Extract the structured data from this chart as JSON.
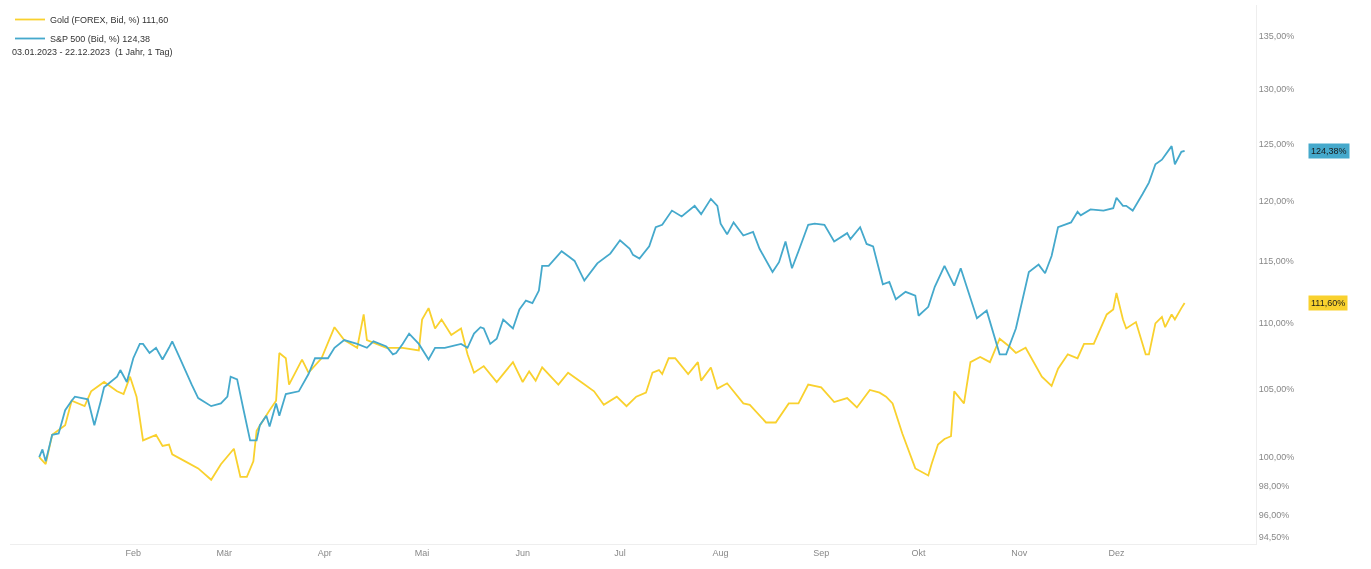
{
  "chart_data": {
    "type": "line",
    "log": "y",
    "grid": false,
    "legend": "top left",
    "marker": "none",
    "line_style": "solid",
    "xlim": [
      "2022-12-25",
      "2024-01-13"
    ],
    "xticks": [
      {
        "value": "2023-02-01",
        "label": "Feb"
      },
      {
        "value": "2023-03-01",
        "label": "Mär"
      },
      {
        "value": "2023-04-01",
        "label": "Apr"
      },
      {
        "value": "2023-05-01",
        "label": "Mai"
      },
      {
        "value": "2023-06-01",
        "label": "Jun"
      },
      {
        "value": "2023-07-01",
        "label": "Jul"
      },
      {
        "value": "2023-08-01",
        "label": "Aug"
      },
      {
        "value": "2023-09-01",
        "label": "Sep"
      },
      {
        "value": "2023-10-01",
        "label": "Okt"
      },
      {
        "value": "2023-11-01",
        "label": "Nov"
      },
      {
        "value": "2023-12-01",
        "label": "Dez"
      }
    ],
    "ylim": [
      94,
      138
    ],
    "yticks": [
      {
        "value": 94.5,
        "label": "94,50%"
      },
      {
        "value": 96,
        "label": "96,00%"
      },
      {
        "value": 98,
        "label": "98,00%"
      },
      {
        "value": 100,
        "label": "100,00%"
      },
      {
        "value": 105,
        "label": "105,00%"
      },
      {
        "value": 110,
        "label": "110,00%"
      },
      {
        "value": 115,
        "label": "115,00%"
      },
      {
        "value": 120,
        "label": "120,00%"
      },
      {
        "value": 125,
        "label": "125,00%"
      },
      {
        "value": 130,
        "label": "130,00%"
      },
      {
        "value": 135,
        "label": "135,00%"
      }
    ],
    "annotations": [
      "03.01.2023 - 22.12.2023  (1 Jahr, 1 Tag)",
      "111,60%",
      "124,38%"
    ],
    "series": [
      {
        "name": "Gold (FOREX, Bid, %) 111,60",
        "color": "#f9d12e",
        "x": [
          "2023-01-03",
          "2023-01-05",
          "2023-01-07",
          "2023-01-11",
          "2023-01-13",
          "2023-01-17",
          "2023-01-19",
          "2023-01-23",
          "2023-01-27",
          "2023-01-29",
          "2023-01-31",
          "2023-02-02",
          "2023-02-04",
          "2023-02-08",
          "2023-02-10",
          "2023-02-12",
          "2023-02-13",
          "2023-02-17",
          "2023-02-21",
          "2023-02-25",
          "2023-02-28",
          "2023-03-04",
          "2023-03-06",
          "2023-03-08",
          "2023-03-10",
          "2023-03-11",
          "2023-03-15",
          "2023-03-17",
          "2023-03-18",
          "2023-03-20",
          "2023-03-21",
          "2023-03-25",
          "2023-03-27",
          "2023-03-31",
          "2023-04-04",
          "2023-04-07",
          "2023-04-11",
          "2023-04-13",
          "2023-04-14",
          "2023-04-20",
          "2023-04-25",
          "2023-04-30",
          "2023-05-01",
          "2023-05-03",
          "2023-05-05",
          "2023-05-07",
          "2023-05-10",
          "2023-05-13",
          "2023-05-15",
          "2023-05-17",
          "2023-05-20",
          "2023-05-24",
          "2023-05-29",
          "2023-06-01",
          "2023-06-03",
          "2023-06-05",
          "2023-06-07",
          "2023-06-12",
          "2023-06-15",
          "2023-06-19",
          "2023-06-23",
          "2023-06-26",
          "2023-06-30",
          "2023-07-03",
          "2023-07-06",
          "2023-07-09",
          "2023-07-11",
          "2023-07-13",
          "2023-07-14",
          "2023-07-16",
          "2023-07-18",
          "2023-07-22",
          "2023-07-25",
          "2023-07-26",
          "2023-07-29",
          "2023-07-31",
          "2023-08-03",
          "2023-08-08",
          "2023-08-10",
          "2023-08-15",
          "2023-08-18",
          "2023-08-22",
          "2023-08-25",
          "2023-08-28",
          "2023-09-01",
          "2023-09-05",
          "2023-09-09",
          "2023-09-12",
          "2023-09-16",
          "2023-09-19",
          "2023-09-21",
          "2023-09-23",
          "2023-09-26",
          "2023-09-30",
          "2023-10-04",
          "2023-10-05",
          "2023-10-07",
          "2023-10-09",
          "2023-10-11",
          "2023-10-12",
          "2023-10-15",
          "2023-10-17",
          "2023-10-20",
          "2023-10-23",
          "2023-10-26",
          "2023-10-29",
          "2023-10-31",
          "2023-11-03",
          "2023-11-08",
          "2023-11-11",
          "2023-11-13",
          "2023-11-16",
          "2023-11-19",
          "2023-11-21",
          "2023-11-24",
          "2023-11-28",
          "2023-11-30",
          "2023-12-01",
          "2023-12-03",
          "2023-12-04",
          "2023-12-07",
          "2023-12-10",
          "2023-12-11",
          "2023-12-13",
          "2023-12-15",
          "2023-12-16",
          "2023-12-18",
          "2023-12-19",
          "2023-12-21",
          "2023-12-22"
        ],
        "values": [
          100,
          99.5,
          101.6,
          102.3,
          104.1,
          103.7,
          104.8,
          105.5,
          104.8,
          104.6,
          105.9,
          104.4,
          101.2,
          101.6,
          100.8,
          100.9,
          100.2,
          99.7,
          99.2,
          98.4,
          99.5,
          100.6,
          98.6,
          98.6,
          99.7,
          101.9,
          103.4,
          104.1,
          107.7,
          107.3,
          105.3,
          107.2,
          106.2,
          107.3,
          109.7,
          108.7,
          108.1,
          110.7,
          108.7,
          108.1,
          108.1,
          107.9,
          110.3,
          111.2,
          109.6,
          110.3,
          109.1,
          109.6,
          107.6,
          106.2,
          106.7,
          105.5,
          107.0,
          105.5,
          106.3,
          105.6,
          106.6,
          105.3,
          106.2,
          105.5,
          104.8,
          103.8,
          104.4,
          103.7,
          104.4,
          104.7,
          106.2,
          106.4,
          106.1,
          107.3,
          107.3,
          106.1,
          107.0,
          105.6,
          106.6,
          105.0,
          105.4,
          103.9,
          103.8,
          102.5,
          102.5,
          103.9,
          103.9,
          105.3,
          105.1,
          104.0,
          104.3,
          103.6,
          104.9,
          104.7,
          104.4,
          103.9,
          101.7,
          99.2,
          98.7,
          99.5,
          100.9,
          101.3,
          101.5,
          104.8,
          103.9,
          107.0,
          107.4,
          107.0,
          108.8,
          108.2,
          107.7,
          108.1,
          105.9,
          105.2,
          106.5,
          107.6,
          107.3,
          108.4,
          108.4,
          110.7,
          111.1,
          112.4,
          110.3,
          109.6,
          110.1,
          107.6,
          107.6,
          110.0,
          110.5,
          109.7,
          110.7,
          110.3,
          111.2,
          111.6
        ]
      },
      {
        "name": "S&P 500 (Bid, %) 124,38",
        "color": "#45a9cc",
        "x": [
          "2023-01-03",
          "2023-01-04",
          "2023-01-05",
          "2023-01-07",
          "2023-01-09",
          "2023-01-11",
          "2023-01-13",
          "2023-01-14",
          "2023-01-18",
          "2023-01-20",
          "2023-01-22",
          "2023-01-23",
          "2023-01-27",
          "2023-01-28",
          "2023-01-30",
          "2023-02-01",
          "2023-02-03",
          "2023-02-04",
          "2023-02-06",
          "2023-02-08",
          "2023-02-10",
          "2023-02-12",
          "2023-02-13",
          "2023-02-15",
          "2023-02-17",
          "2023-02-19",
          "2023-02-21",
          "2023-02-25",
          "2023-02-28",
          "2023-03-02",
          "2023-03-03",
          "2023-03-05",
          "2023-03-07",
          "2023-03-09",
          "2023-03-11",
          "2023-03-12",
          "2023-03-14",
          "2023-03-15",
          "2023-03-17",
          "2023-03-18",
          "2023-03-20",
          "2023-03-24",
          "2023-03-27",
          "2023-03-29",
          "2023-04-02",
          "2023-04-04",
          "2023-04-07",
          "2023-04-11",
          "2023-04-14",
          "2023-04-16",
          "2023-04-20",
          "2023-04-22",
          "2023-04-23",
          "2023-04-25",
          "2023-04-27",
          "2023-04-30",
          "2023-05-03",
          "2023-05-05",
          "2023-05-08",
          "2023-05-13",
          "2023-05-15",
          "2023-05-17",
          "2023-05-19",
          "2023-05-20",
          "2023-05-22",
          "2023-05-24",
          "2023-05-26",
          "2023-05-29",
          "2023-05-31",
          "2023-06-02",
          "2023-06-04",
          "2023-06-06",
          "2023-06-07",
          "2023-06-09",
          "2023-06-13",
          "2023-06-15",
          "2023-06-17",
          "2023-06-20",
          "2023-06-24",
          "2023-06-28",
          "2023-07-01",
          "2023-07-04",
          "2023-07-05",
          "2023-07-07",
          "2023-07-10",
          "2023-07-12",
          "2023-07-14",
          "2023-07-17",
          "2023-07-20",
          "2023-07-24",
          "2023-07-26",
          "2023-07-29",
          "2023-07-31",
          "2023-08-01",
          "2023-08-03",
          "2023-08-05",
          "2023-08-08",
          "2023-08-11",
          "2023-08-13",
          "2023-08-17",
          "2023-08-19",
          "2023-08-21",
          "2023-08-23",
          "2023-08-25",
          "2023-08-28",
          "2023-08-30",
          "2023-09-02",
          "2023-09-05",
          "2023-09-09",
          "2023-09-10",
          "2023-09-13",
          "2023-09-15",
          "2023-09-17",
          "2023-09-20",
          "2023-09-22",
          "2023-09-24",
          "2023-09-27",
          "2023-09-30",
          "2023-10-01",
          "2023-10-04",
          "2023-10-06",
          "2023-10-09",
          "2023-10-12",
          "2023-10-14",
          "2023-10-19",
          "2023-10-22",
          "2023-10-26",
          "2023-10-28",
          "2023-10-31",
          "2023-11-04",
          "2023-11-07",
          "2023-11-09",
          "2023-11-11",
          "2023-11-13",
          "2023-11-17",
          "2023-11-19",
          "2023-11-20",
          "2023-11-23",
          "2023-11-27",
          "2023-11-30",
          "2023-12-01",
          "2023-12-03",
          "2023-12-04",
          "2023-12-06",
          "2023-12-09",
          "2023-12-11",
          "2023-12-13",
          "2023-12-15",
          "2023-12-18",
          "2023-12-19",
          "2023-12-21",
          "2023-12-22"
        ],
        "values": [
          100,
          100.55,
          99.7,
          101.6,
          101.7,
          103.4,
          104.1,
          104.4,
          104.2,
          102.3,
          104.1,
          105.1,
          105.9,
          106.4,
          105.5,
          107.3,
          108.4,
          108.4,
          107.7,
          108.1,
          107.2,
          108.1,
          108.6,
          107.5,
          106.4,
          105.3,
          104.3,
          103.7,
          103.9,
          104.4,
          105.9,
          105.7,
          103.4,
          101.2,
          101.2,
          102.3,
          103.0,
          102.2,
          103.9,
          103.0,
          104.6,
          104.8,
          106.1,
          107.3,
          107.3,
          108.1,
          108.7,
          108.4,
          108.1,
          108.6,
          108.2,
          107.6,
          107.7,
          108.4,
          109.2,
          108.4,
          107.2,
          108.1,
          108.1,
          108.4,
          108.1,
          109.2,
          109.7,
          109.6,
          108.4,
          108.8,
          110.3,
          109.6,
          111.1,
          111.8,
          111.6,
          112.6,
          114.6,
          114.6,
          115.8,
          115.4,
          115.0,
          113.4,
          114.8,
          115.6,
          116.7,
          116.0,
          115.5,
          115.2,
          116.2,
          117.8,
          118.0,
          119.2,
          118.7,
          119.6,
          118.9,
          120.2,
          119.6,
          118.1,
          117.2,
          118.2,
          117.1,
          117.4,
          116.0,
          114.1,
          114.9,
          116.6,
          114.4,
          115.8,
          118.0,
          118.1,
          118.0,
          116.6,
          117.3,
          116.8,
          117.8,
          116.4,
          116.2,
          113.1,
          113.3,
          111.9,
          112.5,
          112.2,
          110.6,
          111.3,
          112.9,
          114.6,
          113.0,
          114.4,
          110.4,
          111.0,
          107.6,
          107.6,
          109.6,
          114.1,
          114.7,
          114.0,
          115.4,
          117.8,
          118.2,
          119.1,
          118.8,
          119.3,
          119.2,
          119.4,
          120.3,
          119.6,
          119.6,
          119.2,
          120.6,
          121.6,
          123.2,
          123.6,
          124.8,
          123.2,
          124.3,
          124.38
        ]
      }
    ]
  }
}
